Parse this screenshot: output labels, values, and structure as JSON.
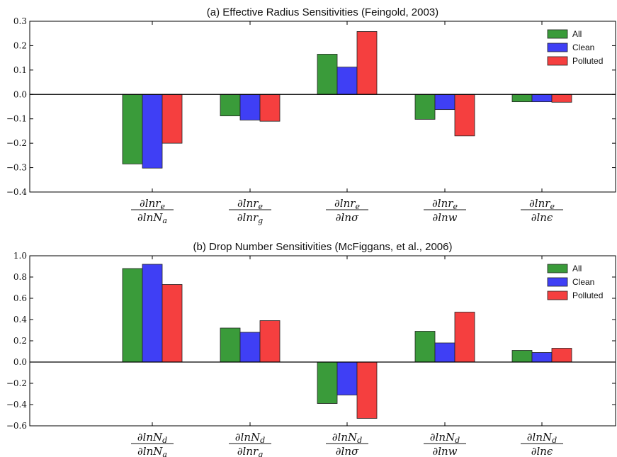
{
  "chart_data": [
    {
      "type": "bar",
      "title": "(a) Effective Radius Sensitivities (Feingold, 2003)",
      "categories": [
        {
          "num": "∂lnr",
          "num_sub": "e",
          "den": "∂lnN",
          "den_sub": "a"
        },
        {
          "num": "∂lnr",
          "num_sub": "e",
          "den": "∂lnr",
          "den_sub": "g"
        },
        {
          "num": "∂lnr",
          "num_sub": "e",
          "den": "∂lnσ",
          "den_sub": ""
        },
        {
          "num": "∂lnr",
          "num_sub": "e",
          "den": "∂lnw",
          "den_sub": ""
        },
        {
          "num": "∂lnr",
          "num_sub": "e",
          "den": "∂lnϵ",
          "den_sub": ""
        }
      ],
      "series": [
        {
          "name": "All",
          "color": "#3a9b3a",
          "values": [
            -0.285,
            -0.088,
            0.165,
            -0.102,
            -0.03
          ]
        },
        {
          "name": "Clean",
          "color": "#3f3ff5",
          "values": [
            -0.302,
            -0.105,
            0.112,
            -0.062,
            -0.03
          ]
        },
        {
          "name": "Polluted",
          "color": "#f53f3f",
          "values": [
            -0.2,
            -0.11,
            0.258,
            -0.17,
            -0.032
          ]
        }
      ],
      "ylim": [
        -0.4,
        0.3
      ],
      "yticks": [
        "0.3",
        "0.2",
        "0.1",
        "0.0",
        "−0.1",
        "−0.2",
        "−0.3",
        "−0.4"
      ],
      "ytick_values": [
        0.3,
        0.2,
        0.1,
        0.0,
        -0.1,
        -0.2,
        -0.3,
        -0.4
      ],
      "legend": "top-right",
      "grid": false
    },
    {
      "type": "bar",
      "title": "(b) Drop Number Sensitivities (McFiggans, et al., 2006)",
      "categories": [
        {
          "num": "∂lnN",
          "num_sub": "d",
          "den": "∂lnN",
          "den_sub": "a"
        },
        {
          "num": "∂lnN",
          "num_sub": "d",
          "den": "∂lnr",
          "den_sub": "g"
        },
        {
          "num": "∂lnN",
          "num_sub": "d",
          "den": "∂lnσ",
          "den_sub": ""
        },
        {
          "num": "∂lnN",
          "num_sub": "d",
          "den": "∂lnw",
          "den_sub": ""
        },
        {
          "num": "∂lnN",
          "num_sub": "d",
          "den": "∂lnϵ",
          "den_sub": ""
        }
      ],
      "series": [
        {
          "name": "All",
          "color": "#3a9b3a",
          "values": [
            0.88,
            0.32,
            -0.39,
            0.29,
            0.11
          ]
        },
        {
          "name": "Clean",
          "color": "#3f3ff5",
          "values": [
            0.92,
            0.28,
            -0.31,
            0.18,
            0.09
          ]
        },
        {
          "name": "Polluted",
          "color": "#f53f3f",
          "values": [
            0.73,
            0.39,
            -0.53,
            0.47,
            0.13
          ]
        }
      ],
      "ylim": [
        -0.6,
        1.0
      ],
      "yticks": [
        "1.0",
        "0.8",
        "0.6",
        "0.4",
        "0.2",
        "0.0",
        "−0.2",
        "−0.4",
        "−0.6"
      ],
      "ytick_values": [
        1.0,
        0.8,
        0.6,
        0.4,
        0.2,
        0.0,
        -0.2,
        -0.4,
        -0.6
      ],
      "legend": "top-right",
      "grid": false
    }
  ]
}
